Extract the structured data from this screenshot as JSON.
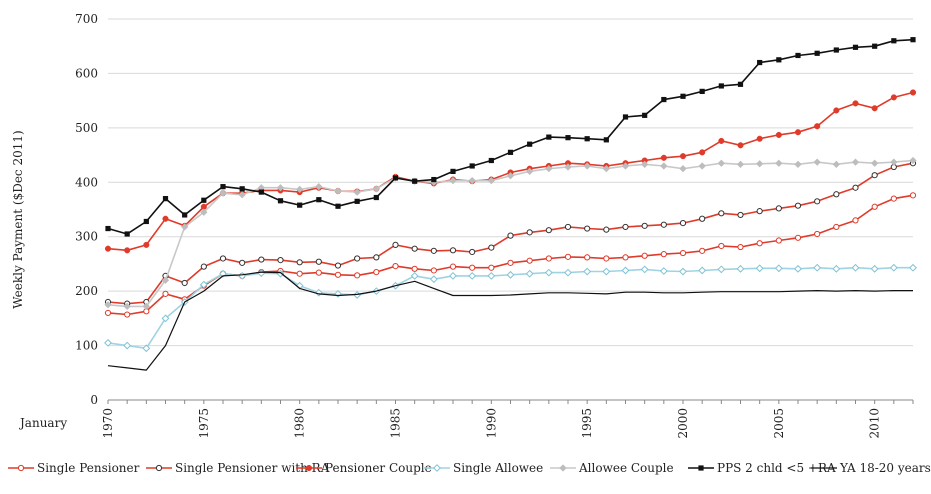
{
  "chart_data": {
    "type": "line",
    "title": "",
    "xlabel": "January",
    "ylabel": "Weekly Payment ($Dec 2011)",
    "xlim": [
      1970,
      2012
    ],
    "ylim": [
      0,
      700
    ],
    "yticks": [
      0,
      100,
      200,
      300,
      400,
      500,
      600,
      700
    ],
    "xticks": [
      1970,
      1975,
      1980,
      1985,
      1990,
      1995,
      2000,
      2005,
      2010
    ],
    "grid": true,
    "legend_position": "bottom",
    "x": [
      1970,
      1971,
      1972,
      1973,
      1974,
      1975,
      1976,
      1977,
      1978,
      1979,
      1980,
      1981,
      1982,
      1983,
      1984,
      1985,
      1986,
      1987,
      1988,
      1989,
      1990,
      1991,
      1992,
      1993,
      1994,
      1995,
      1996,
      1997,
      1998,
      1999,
      2000,
      2001,
      2002,
      2003,
      2004,
      2005,
      2006,
      2007,
      2008,
      2009,
      2010,
      2011,
      2012
    ],
    "series": [
      {
        "name": "Single  Pensioner",
        "color": "#e03a2a",
        "marker": "open-circle",
        "line": "#e03a2a",
        "values": [
          160,
          157,
          163,
          195,
          185,
          210,
          232,
          228,
          235,
          237,
          232,
          234,
          230,
          229,
          235,
          246,
          241,
          238,
          245,
          243,
          243,
          252,
          256,
          260,
          263,
          262,
          260,
          262,
          265,
          268,
          270,
          274,
          283,
          281,
          288,
          293,
          298,
          305,
          318,
          330,
          355,
          370,
          376
        ]
      },
      {
        "name": "Single Pensioner with RA",
        "color": "#e03a2a",
        "marker": "open-circle-dark",
        "line": "#e03a2a",
        "values": [
          180,
          177,
          180,
          228,
          215,
          245,
          260,
          252,
          258,
          257,
          253,
          254,
          247,
          260,
          262,
          285,
          278,
          274,
          275,
          272,
          280,
          302,
          308,
          312,
          318,
          315,
          313,
          318,
          320,
          322,
          325,
          333,
          343,
          340,
          347,
          352,
          357,
          365,
          378,
          390,
          413,
          428,
          435
        ]
      },
      {
        "name": "Pensioner Couple",
        "color": "#e03a2a",
        "marker": "filled-circle",
        "line": "#e03a2a",
        "values": [
          278,
          275,
          285,
          333,
          320,
          355,
          380,
          380,
          385,
          385,
          382,
          390,
          384,
          383,
          388,
          410,
          402,
          398,
          405,
          402,
          405,
          418,
          425,
          430,
          435,
          433,
          430,
          435,
          440,
          445,
          448,
          455,
          476,
          468,
          480,
          487,
          492,
          503,
          532,
          545,
          536,
          556,
          565
        ]
      },
      {
        "name": "Single Allowee",
        "color": "#7fc3d6",
        "marker": "open-diamond",
        "line": "#9fd3e3",
        "values": [
          105,
          100,
          95,
          150,
          180,
          212,
          232,
          228,
          233,
          232,
          210,
          197,
          195,
          193,
          200,
          210,
          228,
          222,
          228,
          228,
          228,
          230,
          232,
          234,
          234,
          236,
          236,
          238,
          240,
          237,
          236,
          238,
          240,
          241,
          242,
          242,
          241,
          243,
          241,
          243,
          241,
          243,
          243
        ]
      },
      {
        "name": "Allowee Couple",
        "color": "#bdbdbd",
        "marker": "filled-diamond",
        "line": "#c8c8c8",
        "values": [
          175,
          172,
          172,
          220,
          318,
          345,
          380,
          377,
          390,
          390,
          387,
          392,
          384,
          382,
          388,
          408,
          402,
          400,
          403,
          403,
          403,
          412,
          420,
          425,
          428,
          430,
          425,
          430,
          433,
          430,
          425,
          430,
          435,
          433,
          434,
          435,
          433,
          437,
          433,
          437,
          435,
          437,
          440
        ]
      },
      {
        "name": "PPS 2 chld <5 +RA",
        "color": "#111111",
        "marker": "filled-square",
        "line": "#111111",
        "values": [
          315,
          305,
          328,
          370,
          340,
          367,
          392,
          388,
          382,
          366,
          358,
          368,
          356,
          365,
          372,
          408,
          402,
          405,
          420,
          430,
          440,
          455,
          470,
          483,
          482,
          480,
          478,
          520,
          523,
          552,
          558,
          567,
          577,
          580,
          620,
          625,
          633,
          637,
          643,
          648,
          650,
          660,
          662
        ]
      },
      {
        "name": "YA 18-20 years",
        "color": "#111111",
        "marker": "none",
        "line": "#111111",
        "values": [
          63,
          59,
          55,
          100,
          180,
          200,
          228,
          230,
          235,
          234,
          205,
          195,
          192,
          194,
          200,
          210,
          218,
          205,
          192,
          192,
          192,
          193,
          195,
          197,
          197,
          196,
          195,
          198,
          198,
          197,
          197,
          198,
          199,
          199,
          199,
          199,
          200,
          201,
          200,
          201,
          200,
          201,
          201
        ]
      }
    ]
  }
}
